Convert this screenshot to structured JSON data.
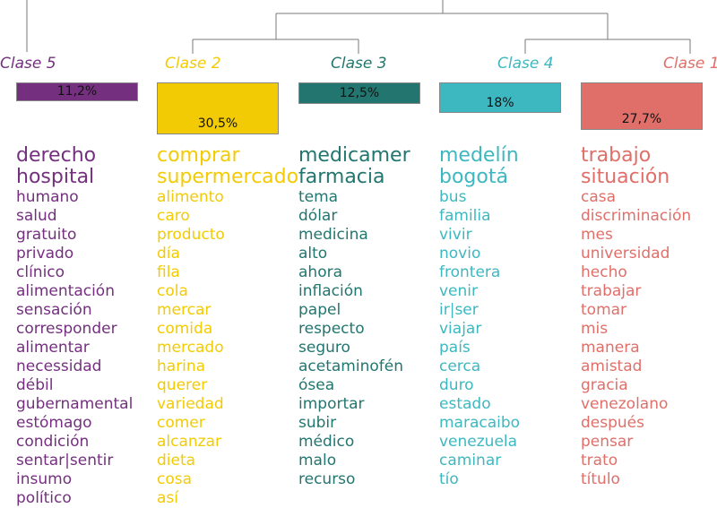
{
  "classes": [
    {
      "label": "Clase 5",
      "percent": "11,2%",
      "share": 11.2,
      "color": "#74307f",
      "words": [
        "derecho",
        "hospital",
        "humano",
        "salud",
        "gratuito",
        "privado",
        "clínico",
        "alimentación",
        "sensación",
        "corresponder",
        "alimentar",
        "necessidad",
        "débil",
        "gubernamental",
        "estómago",
        "condición",
        "sentar|sentir",
        "insumo",
        "político"
      ]
    },
    {
      "label": "Clase 2",
      "percent": "30,5%",
      "share": 30.5,
      "color": "#f2cb05",
      "words": [
        "comprar",
        "supermercado",
        "alimento",
        "caro",
        "producto",
        "día",
        "fila",
        "cola",
        "mercar",
        "comida",
        "mercado",
        "harina",
        "querer",
        "variedad",
        "comer",
        "alcanzar",
        "dieta",
        "cosa",
        "así"
      ]
    },
    {
      "label": "Clase 3",
      "percent": "12,5%",
      "share": 12.5,
      "color": "#22766f",
      "words": [
        "medicamer",
        "farmacia",
        "tema",
        "dólar",
        "medicina",
        "alto",
        "ahora",
        "inflación",
        "papel",
        "respecto",
        "seguro",
        "acetaminofén",
        "ósea",
        "importar",
        "subir",
        "médico",
        "malo",
        "recurso"
      ]
    },
    {
      "label": "Clase 4",
      "percent": "18%",
      "share": 18,
      "color": "#3db8c0",
      "words": [
        "medelín",
        "bogotá",
        "bus",
        "familia",
        "vivir",
        "novio",
        "frontera",
        "venir",
        "ir|ser",
        "viajar",
        "país",
        "cerca",
        "duro",
        "estado",
        "maracaibo",
        "venezuela",
        "caminar",
        "tío"
      ]
    },
    {
      "label": "Clase 1",
      "percent": "27,7%",
      "share": 27.7,
      "color": "#e06f69",
      "words": [
        "trabajo",
        "situación",
        "casa",
        "discriminación",
        "mes",
        "universidad",
        "hecho",
        "trabajar",
        "tomar",
        "mis",
        "manera",
        "amistad",
        "gracia",
        "venezolano",
        "después",
        "pensar",
        "trato",
        "título"
      ]
    }
  ]
}
